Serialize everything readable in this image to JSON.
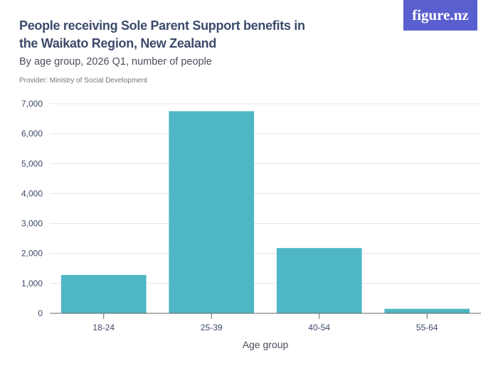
{
  "title": "People receiving Sole Parent Support benefits in the Waikato Region, New Zealand",
  "subtitle": "By age group, 2026 Q1, number of people",
  "provider": "Provider: Ministry of Social Development",
  "logo": "figure.nz",
  "chart_data": {
    "type": "bar",
    "categories": [
      "18-24",
      "25-39",
      "40-54",
      "55-64"
    ],
    "values": [
      1280,
      6750,
      2180,
      150
    ],
    "xlabel": "Age group",
    "ylabel": "",
    "ylim": [
      0,
      7000
    ],
    "yticks": [
      0,
      1000,
      2000,
      3000,
      4000,
      5000,
      6000,
      7000
    ],
    "ytick_labels": [
      "0",
      "1,000",
      "2,000",
      "3,000",
      "4,000",
      "5,000",
      "6,000",
      "7,000"
    ],
    "grid": true,
    "color": "#4fb6c5"
  }
}
